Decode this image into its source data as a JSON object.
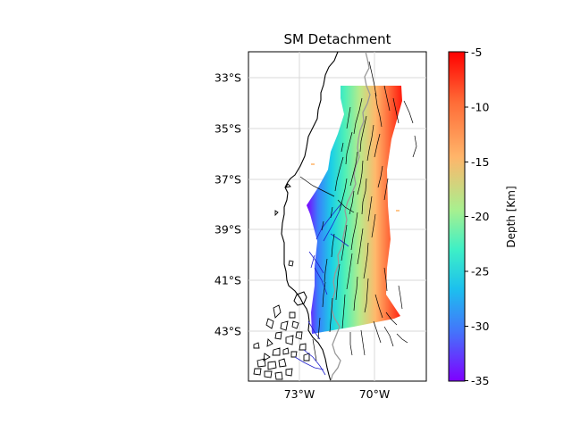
{
  "title": "SM Detachment",
  "map": {
    "lat_ticks": [
      "33°S",
      "35°S",
      "37°S",
      "39°S",
      "41°S",
      "43°S"
    ],
    "lon_ticks": [
      "73°W",
      "70°W"
    ],
    "gridlines": true
  },
  "colorbar": {
    "label": "Depth [Km]",
    "colormap": "rainbow",
    "range": [
      -35,
      -5
    ],
    "tick_labels": [
      "-5",
      "-10",
      "-15",
      "-20",
      "-25",
      "-30",
      "-35"
    ]
  },
  "colors": {
    "coastline": "#000000",
    "border": "#999999",
    "faults": "#000000",
    "trench_lines": "#2020cc",
    "frame": "#000000"
  }
}
